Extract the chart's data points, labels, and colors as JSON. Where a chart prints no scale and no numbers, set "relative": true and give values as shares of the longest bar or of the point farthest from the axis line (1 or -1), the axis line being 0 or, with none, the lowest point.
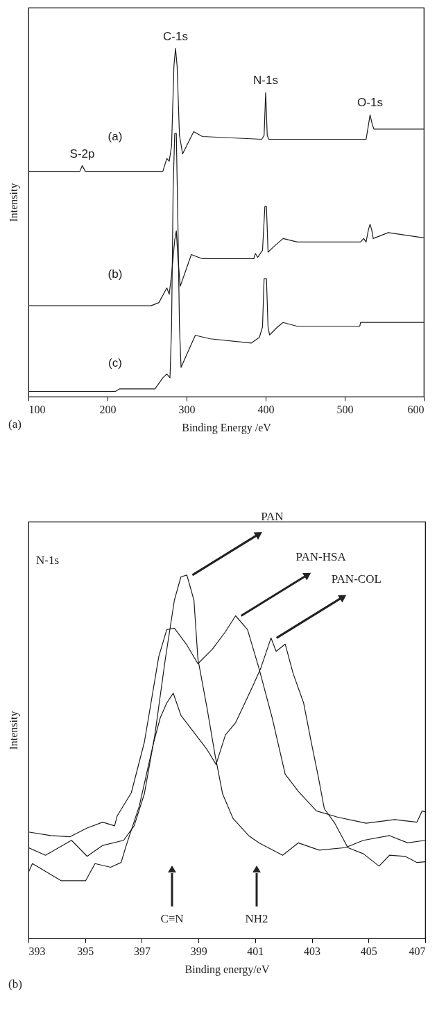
{
  "chart_data": [
    {
      "type": "line",
      "relative": true,
      "xlabel": "Binding Energy /eV",
      "ylabel": "Intensity",
      "xlim": [
        100,
        600
      ],
      "xticks": [
        100,
        200,
        300,
        400,
        500,
        600
      ],
      "grid": false,
      "annotations": [
        {
          "text": "C-1s",
          "x": 286,
          "y": 1.0
        },
        {
          "text": "N-1s",
          "x": 400,
          "y": 0.873
        },
        {
          "text": "O-1s",
          "x": 532,
          "y": 0.809
        },
        {
          "text": "S-2p",
          "x": 168,
          "y": 0.663
        },
        "(a)"
      ],
      "series": [
        {
          "name": "(a)",
          "color": "#1a1a1a",
          "x": [
            100,
            150,
            165,
            168,
            172,
            270,
            275,
            278,
            281,
            284,
            286,
            288,
            291,
            295,
            300,
            309,
            320,
            395,
            398,
            400,
            402,
            404,
            500,
            527,
            530,
            532,
            535,
            537,
            600
          ],
          "values": [
            0.647,
            0.647,
            0.647,
            0.663,
            0.647,
            0.647,
            0.684,
            0.676,
            0.72,
            0.95,
            1.0,
            0.95,
            0.75,
            0.697,
            0.72,
            0.761,
            0.747,
            0.739,
            0.75,
            0.873,
            0.75,
            0.739,
            0.739,
            0.739,
            0.78,
            0.809,
            0.78,
            0.768,
            0.768
          ]
        },
        {
          "name": "(b)",
          "color": "#1a1a1a",
          "x": [
            100,
            255,
            265,
            275,
            278,
            281,
            285,
            287,
            289,
            292,
            306,
            320,
            385,
            387,
            390,
            396,
            399,
            401,
            403,
            410,
            422,
            440,
            520,
            524,
            527,
            530,
            532,
            534,
            536,
            555,
            600
          ],
          "values": [
            0.261,
            0.261,
            0.27,
            0.312,
            0.294,
            0.35,
            0.45,
            0.476,
            0.4,
            0.317,
            0.408,
            0.396,
            0.396,
            0.411,
            0.4,
            0.42,
            0.546,
            0.546,
            0.415,
            0.43,
            0.454,
            0.444,
            0.444,
            0.454,
            0.444,
            0.48,
            0.495,
            0.48,
            0.454,
            0.471,
            0.456
          ]
        },
        {
          "name": "(c)",
          "color": "#1a1a1a",
          "x": [
            100,
            210,
            215,
            260,
            270,
            275,
            279,
            281,
            283,
            285,
            287,
            289,
            291,
            293,
            300,
            311,
            330,
            382,
            392,
            396,
            398,
            401,
            403,
            405,
            415,
            422,
            440,
            519,
            520,
            600
          ],
          "values": [
            0.015,
            0.015,
            0.022,
            0.022,
            0.054,
            0.065,
            0.054,
            0.2,
            0.6,
            0.756,
            0.756,
            0.5,
            0.2,
            0.084,
            0.12,
            0.176,
            0.166,
            0.154,
            0.17,
            0.2,
            0.339,
            0.339,
            0.2,
            0.177,
            0.2,
            0.213,
            0.202,
            0.202,
            0.213,
            0.213
          ]
        }
      ]
    },
    {
      "type": "line",
      "relative": true,
      "xlabel": "Binding energy/eV",
      "ylabel": "Intensity",
      "xlim": [
        393,
        407
      ],
      "xticks": [
        393,
        395,
        397,
        399,
        401,
        403,
        405,
        407
      ],
      "grid": false,
      "annotations": [
        "C≡N",
        "NH2",
        "N-1s",
        "(b)"
      ],
      "series": [
        {
          "name": "PAN",
          "color": "#1a1a1a",
          "x": [
            393,
            393.6,
            394.52,
            395.07,
            395.62,
            396.36,
            396.73,
            397.09,
            397.46,
            397.83,
            398.15,
            398.38,
            398.59,
            398.84,
            398.98,
            399.3,
            399.58,
            399.85,
            400.22,
            400.77,
            401.14,
            401.97,
            402.52,
            403.26,
            404.18,
            404.82,
            405.74,
            406.38,
            407
          ],
          "values": [
            0.25,
            0.229,
            0.27,
            0.226,
            0.256,
            0.27,
            0.31,
            0.398,
            0.56,
            0.769,
            0.931,
            0.995,
            1.0,
            0.931,
            0.769,
            0.635,
            0.507,
            0.398,
            0.33,
            0.283,
            0.263,
            0.229,
            0.263,
            0.243,
            0.25,
            0.27,
            0.283,
            0.263,
            0.27
          ]
        },
        {
          "name": "PAN-HSA",
          "color": "#1a1a1a",
          "x": [
            393,
            393.78,
            394.47,
            395.07,
            395.62,
            396.04,
            396.13,
            396.63,
            397.09,
            397.6,
            397.88,
            398.15,
            398.57,
            398.98,
            399.49,
            399.95,
            400.31,
            400.73,
            401.14,
            401.6,
            402.06,
            402.52,
            403.16,
            403.9,
            404.91,
            405.92,
            406.71,
            406.89,
            407
          ],
          "values": [
            0.293,
            0.283,
            0.28,
            0.304,
            0.32,
            0.31,
            0.337,
            0.401,
            0.54,
            0.776,
            0.85,
            0.854,
            0.81,
            0.756,
            0.796,
            0.844,
            0.888,
            0.85,
            0.742,
            0.607,
            0.452,
            0.405,
            0.351,
            0.334,
            0.317,
            0.327,
            0.32,
            0.351,
            0.348
          ]
        },
        {
          "name": "PAN-COL",
          "color": "#1a1a1a",
          "x": [
            393,
            393.14,
            394.15,
            395.02,
            395.35,
            395.9,
            396.27,
            396.45,
            396.91,
            397.42,
            397.65,
            397.88,
            398.11,
            398.38,
            398.84,
            399.3,
            399.62,
            399.95,
            400.31,
            400.68,
            400.96,
            401.19,
            401.56,
            401.74,
            402.06,
            402.34,
            402.71,
            402.98,
            403.21,
            403.44,
            403.81,
            404.27,
            404.82,
            405.37,
            405.74,
            406.29,
            406.71,
            407
          ],
          "values": [
            0.182,
            0.206,
            0.159,
            0.159,
            0.206,
            0.196,
            0.209,
            0.256,
            0.364,
            0.54,
            0.607,
            0.648,
            0.675,
            0.614,
            0.567,
            0.52,
            0.479,
            0.56,
            0.594,
            0.655,
            0.702,
            0.742,
            0.827,
            0.79,
            0.81,
            0.729,
            0.648,
            0.54,
            0.452,
            0.357,
            0.317,
            0.25,
            0.233,
            0.199,
            0.229,
            0.226,
            0.209,
            0.211
          ]
        }
      ]
    }
  ]
}
